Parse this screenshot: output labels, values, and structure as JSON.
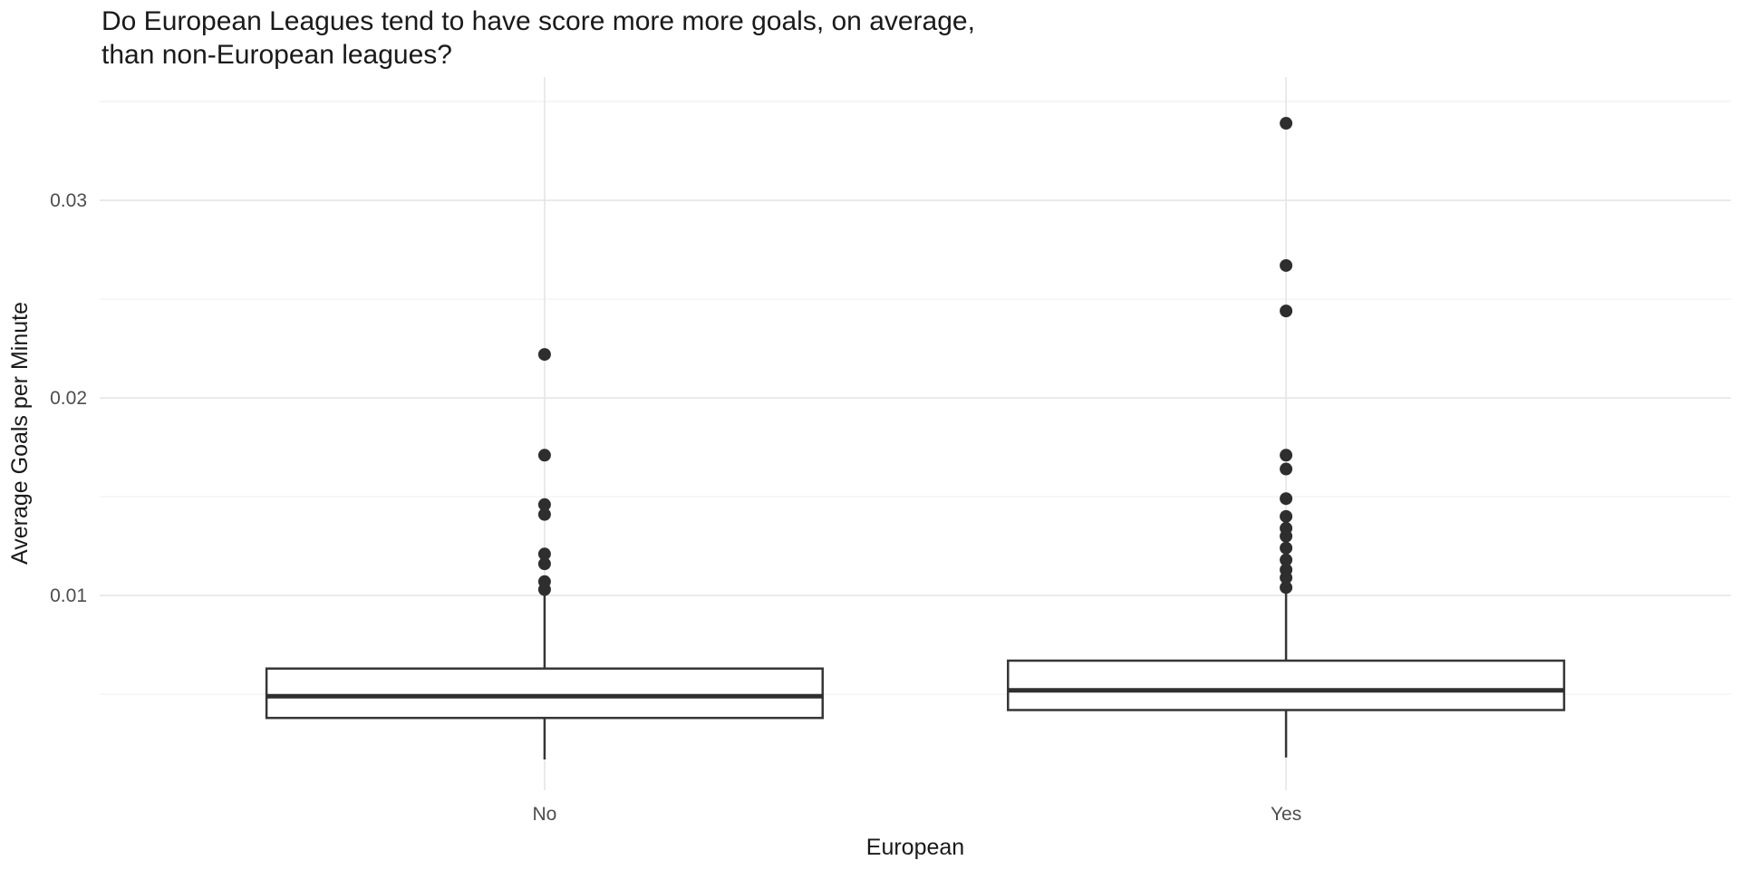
{
  "chart_data": {
    "type": "boxplot",
    "title_lines": [
      "Do European Leagues tend to have score more more goals, on average,",
      "than non-European leagues?"
    ],
    "xlabel": "European",
    "ylabel": "Average Goals per Minute",
    "categories": [
      "No",
      "Yes"
    ],
    "ylim": [
      0.00014,
      0.03624
    ],
    "y_major_ticks": [
      0.01,
      0.02,
      0.03
    ],
    "y_tick_labels": [
      "0.01",
      "0.02",
      "0.03"
    ],
    "y_minor_ticks": [
      0.005,
      0.015,
      0.025,
      0.035
    ],
    "grid": true,
    "legend": "none",
    "series": [
      {
        "category": "No",
        "lower_whisker": 0.0017,
        "q1": 0.0038,
        "median": 0.0049,
        "q3": 0.0063,
        "upper_whisker": 0.01,
        "outliers": [
          0.0222,
          0.0171,
          0.0146,
          0.0141,
          0.0121,
          0.0116,
          0.0107,
          0.0103
        ]
      },
      {
        "category": "Yes",
        "lower_whisker": 0.0018,
        "q1": 0.0042,
        "median": 0.0052,
        "q3": 0.0067,
        "upper_whisker": 0.0102,
        "outliers": [
          0.0339,
          0.0267,
          0.0244,
          0.0171,
          0.0164,
          0.0149,
          0.014,
          0.0134,
          0.013,
          0.0124,
          0.0118,
          0.0113,
          0.0109,
          0.0104
        ]
      }
    ],
    "colors": {
      "background": "#ffffff",
      "box_stroke": "#363636",
      "box_fill": "#ffffff",
      "median": "#2f2f2f",
      "outlier": "#2e2e2e",
      "grid_major": "#e5e5e5",
      "grid_minor": "#f1f1f1",
      "tick_label": "#4d4d4d",
      "text": "#1a1a1a"
    }
  }
}
